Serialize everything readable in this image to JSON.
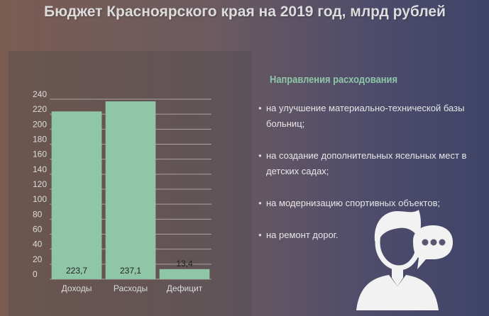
{
  "title": "Бюджет Красноярского края на 2019 год, млрд рублей",
  "chart_data": {
    "type": "bar",
    "title": "Бюджет Красноярского края на 2019 год, млрд рублей",
    "categories": [
      "Доходы",
      "Расходы",
      "Дефицит"
    ],
    "values": [
      223.7,
      237.1,
      13.4
    ],
    "value_labels": [
      "223,7",
      "237,1",
      "13,4"
    ],
    "ylim": [
      0,
      240
    ],
    "yticks": [
      0,
      20,
      40,
      60,
      80,
      100,
      120,
      140,
      160,
      180,
      200,
      220,
      240
    ],
    "grid": true,
    "bar_color": "#8fc6a7"
  },
  "spending": {
    "heading": "Направления расходования",
    "items": [
      "на улучшение материально-технической базы больниц;",
      "на создание дополнительных ясельных мест в детских садах;",
      "на модернизацию спортивных объектов;",
      "на ремонт дорог."
    ]
  },
  "icons": {
    "avatar": "person-with-speech-bubble-icon"
  }
}
